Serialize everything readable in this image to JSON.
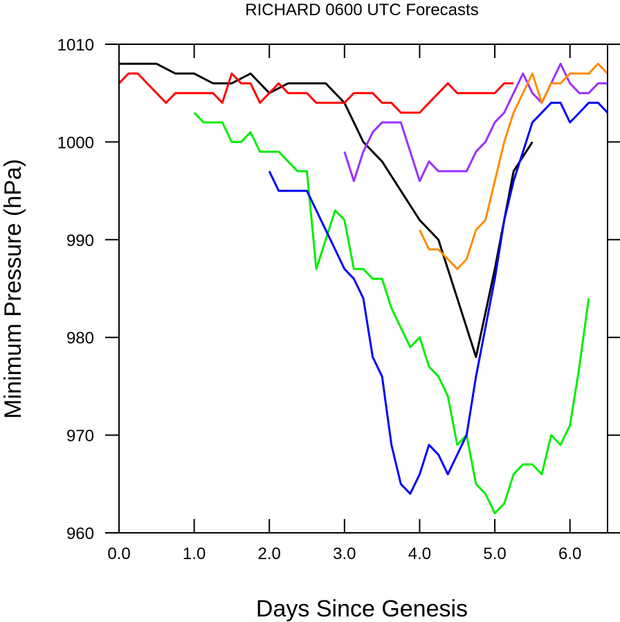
{
  "chart_data": {
    "type": "line",
    "title": "RICHARD 0600 UTC Forecasts",
    "xlabel": "Days Since Genesis",
    "ylabel": "Minimum Pressure (hPa)",
    "xlim": [
      0.0,
      6.5
    ],
    "ylim": [
      960,
      1010
    ],
    "x_ticks": [
      0.0,
      1.0,
      2.0,
      3.0,
      4.0,
      5.0,
      6.0
    ],
    "x_tick_labels": [
      "0.0",
      "1.0",
      "2.0",
      "3.0",
      "4.0",
      "5.0",
      "6.0"
    ],
    "y_ticks": [
      960,
      970,
      980,
      990,
      1000,
      1010
    ],
    "y_tick_labels": [
      "960",
      "970",
      "980",
      "990",
      "1000",
      "1010"
    ],
    "grid": false,
    "legend": "none",
    "series": [
      {
        "color": "#000000",
        "x": [
          0.0,
          0.25,
          0.5,
          0.75,
          1.0,
          1.25,
          1.5,
          1.75,
          2.0,
          2.25,
          2.5,
          2.75,
          3.0,
          3.25,
          3.5,
          3.75,
          4.0,
          4.25,
          4.5,
          4.75,
          5.0,
          5.25,
          5.5
        ],
        "values": [
          1008,
          1008,
          1008,
          1007,
          1007,
          1006,
          1006,
          1007,
          1005,
          1006,
          1006,
          1006,
          1004,
          1000,
          998,
          995,
          992,
          990,
          984,
          978,
          987,
          997,
          1000
        ]
      },
      {
        "color": "#ff0000",
        "x": [
          0.0,
          0.125,
          0.25,
          0.375,
          0.5,
          0.625,
          0.75,
          0.875,
          1.0,
          1.125,
          1.25,
          1.375,
          1.5,
          1.625,
          1.75,
          1.875,
          2.0,
          2.125,
          2.25,
          2.375,
          2.5,
          2.625,
          2.75,
          2.875,
          3.0,
          3.125,
          3.25,
          3.375,
          3.5,
          3.625,
          3.75,
          3.875,
          4.0,
          4.125,
          4.25,
          4.375,
          4.5,
          4.625,
          4.75,
          4.875,
          5.0,
          5.125,
          5.25
        ],
        "values": [
          1006,
          1007,
          1007,
          1006,
          1005,
          1004,
          1005,
          1005,
          1005,
          1005,
          1005,
          1004,
          1007,
          1006,
          1006,
          1004,
          1005,
          1006,
          1005,
          1005,
          1005,
          1004,
          1004,
          1004,
          1004,
          1005,
          1005,
          1005,
          1004,
          1004,
          1003,
          1003,
          1003,
          1004,
          1005,
          1006,
          1005,
          1005,
          1005,
          1005,
          1005,
          1006,
          1006
        ]
      },
      {
        "color": "#00ee00",
        "x": [
          1.0,
          1.125,
          1.25,
          1.375,
          1.5,
          1.625,
          1.75,
          1.875,
          2.0,
          2.125,
          2.25,
          2.375,
          2.5,
          2.625,
          2.75,
          2.875,
          3.0,
          3.125,
          3.25,
          3.375,
          3.5,
          3.625,
          3.75,
          3.875,
          4.0,
          4.125,
          4.25,
          4.375,
          4.5,
          4.625,
          4.75,
          4.875,
          5.0,
          5.125,
          5.25,
          5.375,
          5.5,
          5.625,
          5.75,
          5.875,
          6.0,
          6.125,
          6.25
        ],
        "values": [
          1003,
          1002,
          1002,
          1002,
          1000,
          1000,
          1001,
          999,
          999,
          999,
          998,
          997,
          997,
          987,
          990,
          993,
          992,
          987,
          987,
          986,
          986,
          983,
          981,
          979,
          980,
          977,
          976,
          974,
          969,
          970,
          965,
          964,
          962,
          963,
          966,
          967,
          967,
          966,
          970,
          969,
          971,
          977,
          984
        ]
      },
      {
        "color": "#0000ff",
        "x": [
          2.0,
          2.125,
          2.25,
          2.375,
          2.5,
          2.625,
          2.75,
          2.875,
          3.0,
          3.125,
          3.25,
          3.375,
          3.5,
          3.625,
          3.75,
          3.875,
          4.0,
          4.125,
          4.25,
          4.375,
          4.5,
          4.625,
          4.75,
          4.875,
          5.0,
          5.125,
          5.25,
          5.375,
          5.5,
          5.625,
          5.75,
          5.875,
          6.0,
          6.125,
          6.25,
          6.375,
          6.5
        ],
        "values": [
          997,
          995,
          995,
          995,
          995,
          993,
          991,
          989,
          987,
          986,
          984,
          978,
          976,
          969,
          965,
          964,
          966,
          969,
          968,
          966,
          968,
          970,
          976,
          981,
          986,
          992,
          996,
          999,
          1002,
          1003,
          1004,
          1004,
          1002,
          1003,
          1004,
          1004,
          1003
        ]
      },
      {
        "color": "#9b30ff",
        "x": [
          3.0,
          3.125,
          3.25,
          3.375,
          3.5,
          3.625,
          3.75,
          3.875,
          4.0,
          4.125,
          4.25,
          4.375,
          4.5,
          4.625,
          4.75,
          4.875,
          5.0,
          5.125,
          5.25,
          5.375,
          5.5,
          5.625,
          5.75,
          5.875,
          6.0,
          6.125,
          6.25,
          6.375,
          6.5
        ],
        "values": [
          999,
          996,
          999,
          1001,
          1002,
          1002,
          1002,
          999,
          996,
          998,
          997,
          997,
          997,
          997,
          999,
          1000,
          1002,
          1003,
          1005,
          1007,
          1005,
          1004,
          1006,
          1008,
          1006,
          1005,
          1005,
          1006,
          1006
        ]
      },
      {
        "color": "#ff8c00",
        "x": [
          4.0,
          4.125,
          4.25,
          4.375,
          4.5,
          4.625,
          4.75,
          4.875,
          5.0,
          5.125,
          5.25,
          5.375,
          5.5,
          5.625,
          5.75,
          5.875,
          6.0,
          6.125,
          6.25,
          6.375,
          6.5
        ],
        "values": [
          991,
          989,
          989,
          988,
          987,
          988,
          991,
          992,
          996,
          1000,
          1003,
          1005,
          1007,
          1004,
          1006,
          1006,
          1007,
          1007,
          1007,
          1008,
          1007
        ]
      }
    ]
  }
}
